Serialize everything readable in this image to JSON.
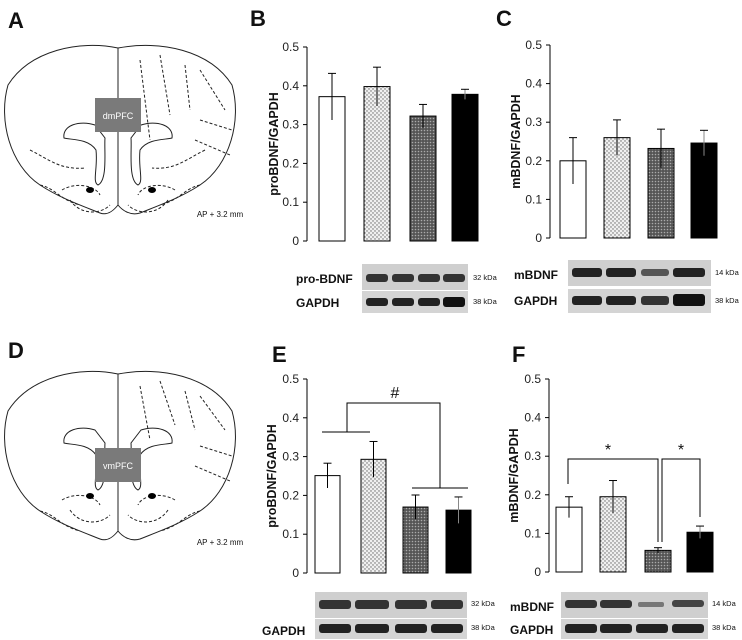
{
  "panels": {
    "A": {
      "letter": "A",
      "region": "dmPFC",
      "ap": "AP + 3.2 mm"
    },
    "B": {
      "letter": "B",
      "blot_target": "pro-BDNF",
      "blot_target_kda": "32 kDa",
      "loading": "GAPDH",
      "loading_kda": "38 kDa"
    },
    "C": {
      "letter": "C",
      "blot_target": "mBDNF",
      "blot_target_kda": "14 kDa",
      "loading": "GAPDH",
      "loading_kda": "38 kDa"
    },
    "D": {
      "letter": "D",
      "region": "vmPFC",
      "ap": "AP + 3.2 mm"
    },
    "E": {
      "letter": "E",
      "blot_target_kda": "32 kDa",
      "loading": "GAPDH",
      "loading_kda": "38 kDa"
    },
    "F": {
      "letter": "F",
      "blot_target": "mBDNF",
      "blot_target_kda": "14 kDa",
      "loading": "GAPDH",
      "loading_kda": "38 kDa"
    }
  },
  "colors": {
    "bar1": "#ffffff",
    "bar2": "#e6e6e6",
    "bar3": "#777777",
    "bar4": "#000000",
    "axis": "#000000"
  },
  "chart_data": [
    {
      "panel": "B",
      "type": "bar",
      "ylabel": "proBDNF/GAPDH",
      "ylim": [
        0,
        0.5
      ],
      "yticks": [
        "0",
        "0.1",
        "0.2",
        "0.3",
        "0.4",
        "0.5"
      ],
      "values": [
        0.372,
        0.398,
        0.322,
        0.378
      ],
      "errors": [
        0.06,
        0.05,
        0.03,
        0.013
      ],
      "annotations": []
    },
    {
      "panel": "C",
      "type": "bar",
      "ylabel": "mBDNF/GAPDH",
      "ylim": [
        0,
        0.5
      ],
      "yticks": [
        "0",
        "0.1",
        "0.2",
        "0.3",
        "0.4",
        "0.5"
      ],
      "values": [
        0.2,
        0.26,
        0.232,
        0.246
      ],
      "errors": [
        0.06,
        0.046,
        0.05,
        0.033
      ],
      "annotations": []
    },
    {
      "panel": "E",
      "type": "bar",
      "ylabel": "proBDNF/GAPDH",
      "ylim": [
        0,
        0.5
      ],
      "yticks": [
        "0",
        "0.1",
        "0.2",
        "0.3",
        "0.4",
        "0.5"
      ],
      "values": [
        0.251,
        0.293,
        0.17,
        0.162
      ],
      "errors": [
        0.032,
        0.046,
        0.031,
        0.034
      ],
      "annotations": [
        "#"
      ]
    },
    {
      "panel": "F",
      "type": "bar",
      "ylabel": "mBDNF/GAPDH",
      "ylim": [
        0,
        0.5
      ],
      "yticks": [
        "0",
        "0.1",
        "0.2",
        "0.3",
        "0.4",
        "0.5"
      ],
      "values": [
        0.168,
        0.195,
        0.056,
        0.103
      ],
      "errors": [
        0.027,
        0.042,
        0.007,
        0.016
      ],
      "annotations": [
        "*",
        "*"
      ]
    }
  ]
}
